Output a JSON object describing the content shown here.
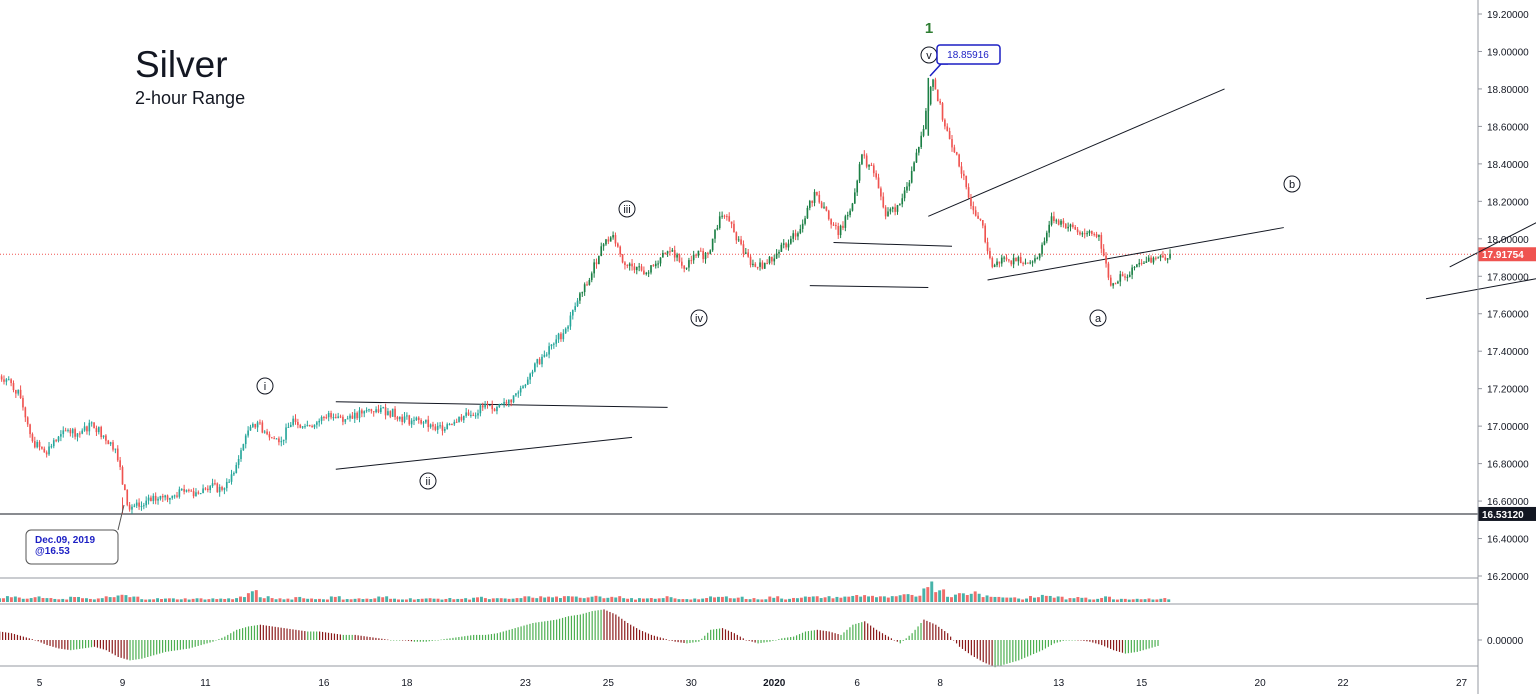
{
  "chart_title": "Silver",
  "chart_subtitle": "2-hour Range",
  "colors": {
    "up": "#26a69a",
    "up_dark": "#1b7f45",
    "down": "#ef5350",
    "text": "#131722",
    "axis_text": "#131722",
    "price_badge": "#ef5350",
    "support_badge": "#131722",
    "callout_border": "#1c1fc4",
    "callout_text": "#1c1fc4",
    "wave_green": "#2e7d32",
    "osc_up": "#4caf50",
    "osc_down": "#8b1a1a"
  },
  "callouts": {
    "top": {
      "text": "18.85916",
      "date_index": 78,
      "price": 18.85916
    },
    "low": {
      "line1": "Dec.09, 2019",
      "line2": "@16.53",
      "date_index": 10,
      "price": 16.53
    }
  },
  "chart_data": {
    "type": "candlestick",
    "title": "Silver",
    "subtitle": "2-hour Range",
    "y_axis": {
      "min": 16.2,
      "max": 19.2,
      "ticks": [
        "19.20000",
        "19.00000",
        "18.80000",
        "18.60000",
        "18.40000",
        "18.20000",
        "18.00000",
        "17.80000",
        "17.60000",
        "17.40000",
        "17.20000",
        "17.00000",
        "16.80000",
        "16.60000",
        "16.40000",
        "16.20000"
      ],
      "tick_values": [
        19.2,
        19.0,
        18.8,
        18.6,
        18.4,
        18.2,
        18.0,
        17.8,
        17.6,
        17.4,
        17.2,
        17.0,
        16.8,
        16.6,
        16.4,
        16.2
      ],
      "side": "right"
    },
    "x_axis": {
      "labels": [
        {
          "text": "5",
          "index": 3
        },
        {
          "text": "9",
          "index": 10
        },
        {
          "text": "11",
          "index": 17
        },
        {
          "text": "16",
          "index": 27
        },
        {
          "text": "18",
          "index": 34
        },
        {
          "text": "23",
          "index": 44
        },
        {
          "text": "25",
          "index": 51
        },
        {
          "text": "30",
          "index": 58
        },
        {
          "text": "2020",
          "index": 65
        },
        {
          "text": "6",
          "index": 72
        },
        {
          "text": "8",
          "index": 79
        },
        {
          "text": "13",
          "index": 89
        },
        {
          "text": "15",
          "index": 96
        },
        {
          "text": "20",
          "index": 106
        },
        {
          "text": "22",
          "index": 113
        },
        {
          "text": "27",
          "index": 123
        }
      ],
      "index_min": 0,
      "index_max": 127,
      "data_last_index": 98
    },
    "price_level": {
      "value": 17.91754,
      "label": "17.91754",
      "style": "dotted"
    },
    "support_level": {
      "value": 16.5312,
      "label": "16.53120",
      "style": "solid"
    },
    "series": [
      {
        "name": "",
        "close": [
          17.25,
          17.15,
          16.92,
          16.86,
          16.92,
          16.98,
          16.96,
          17.02,
          16.95,
          16.88,
          16.58,
          16.57,
          16.6,
          16.62,
          16.63,
          16.66,
          16.64,
          16.68,
          16.66,
          16.75,
          16.95,
          17.02,
          16.94,
          16.92,
          17.04,
          17.0,
          17.02,
          17.07,
          17.05,
          17.04,
          17.08,
          17.09,
          17.08,
          17.05,
          17.03,
          17.02,
          16.98,
          17.01,
          17.05,
          17.06,
          17.1,
          17.08,
          17.12,
          17.18,
          17.28,
          17.37,
          17.44,
          17.52,
          17.67,
          17.78,
          17.96,
          18.02,
          17.86,
          17.85,
          17.82,
          17.9,
          17.94,
          17.84,
          17.91,
          17.92,
          18.12,
          18.08,
          17.92,
          17.85,
          17.87,
          17.93,
          18.0,
          18.08,
          18.25,
          18.15,
          18.02,
          18.15,
          18.45,
          18.35,
          18.12,
          18.18,
          18.3,
          18.55,
          18.85,
          18.6,
          18.45,
          18.22,
          18.1,
          17.85,
          17.9,
          17.88,
          17.87,
          17.92,
          18.12,
          18.08,
          18.05,
          18.03,
          18.02,
          17.75,
          17.8,
          17.85,
          17.88,
          17.9,
          17.92
        ]
      }
    ],
    "volume": {
      "values": [
        3,
        3,
        2,
        3,
        2,
        2,
        3,
        2,
        2,
        3,
        4,
        3,
        2,
        2,
        2,
        2,
        2,
        2,
        2,
        2,
        3,
        6,
        3,
        2,
        2,
        3,
        2,
        2,
        3,
        2,
        2,
        2,
        3,
        2,
        2,
        2,
        2,
        2,
        2,
        2,
        3,
        2,
        2,
        2,
        3,
        3,
        3,
        3,
        3,
        3,
        4,
        3,
        3,
        2,
        2,
        2,
        3,
        2,
        2,
        2,
        3,
        3,
        3,
        2,
        2,
        3,
        2,
        3,
        3,
        3,
        3,
        3,
        4,
        4,
        3,
        3,
        4,
        4,
        11,
        8,
        4,
        5,
        6,
        4,
        3,
        3,
        2,
        3,
        4,
        3,
        2,
        3,
        2,
        3,
        2,
        2,
        2,
        2,
        2
      ]
    },
    "oscillator": {
      "values": [
        0.05,
        0.04,
        0.02,
        0.0,
        -0.03,
        -0.05,
        -0.06,
        -0.05,
        -0.04,
        -0.06,
        -0.1,
        -0.12,
        -0.11,
        -0.09,
        -0.07,
        -0.06,
        -0.05,
        -0.03,
        -0.01,
        0.02,
        0.06,
        0.08,
        0.09,
        0.08,
        0.07,
        0.06,
        0.05,
        0.05,
        0.04,
        0.03,
        0.03,
        0.02,
        0.01,
        0.0,
        0.0,
        -0.01,
        -0.01,
        0.0,
        0.01,
        0.02,
        0.03,
        0.03,
        0.04,
        0.06,
        0.08,
        0.1,
        0.11,
        0.12,
        0.14,
        0.15,
        0.17,
        0.18,
        0.15,
        0.1,
        0.06,
        0.03,
        0.01,
        -0.01,
        -0.02,
        -0.01,
        0.06,
        0.07,
        0.04,
        0.0,
        -0.02,
        -0.01,
        0.01,
        0.02,
        0.05,
        0.06,
        0.05,
        0.03,
        0.09,
        0.11,
        0.06,
        0.02,
        -0.02,
        0.04,
        0.12,
        0.09,
        0.04,
        -0.04,
        -0.09,
        -0.13,
        -0.16,
        -0.14,
        -0.12,
        -0.09,
        -0.06,
        -0.02,
        0.0,
        0.0,
        -0.01,
        -0.03,
        -0.06,
        -0.08,
        -0.07,
        -0.05,
        -0.03
      ]
    },
    "wave_labels": [
      {
        "text": "i",
        "date_index": 29,
        "price": 17.22,
        "style": "circle"
      },
      {
        "text": "ii",
        "date_index": 47,
        "price": 16.74,
        "style": "circle"
      },
      {
        "text": "iii",
        "date_index": 67,
        "price": 18.14,
        "style": "circle"
      },
      {
        "text": "iv",
        "date_index": 75,
        "price": 17.61,
        "style": "circle"
      },
      {
        "text": "v",
        "date_index": 102,
        "price": 18.99,
        "style": "circle"
      },
      {
        "text": "1",
        "date_index": 102,
        "price": 19.11,
        "style": "plain"
      },
      {
        "text": "a",
        "date_index": 121,
        "price": 17.6,
        "style": "circle"
      },
      {
        "text": "b",
        "date_index": 143,
        "price": 18.27,
        "style": "circle"
      }
    ],
    "trendlines": [
      {
        "from": [
          28,
          17.13
        ],
        "to": [
          56,
          17.1
        ]
      },
      {
        "from": [
          28,
          16.77
        ],
        "to": [
          53,
          16.94
        ]
      },
      {
        "from": [
          70,
          17.98
        ],
        "to": [
          80,
          17.96
        ]
      },
      {
        "from": [
          68,
          17.75
        ],
        "to": [
          78,
          17.74
        ]
      },
      {
        "from": [
          78,
          18.12
        ],
        "to": [
          103,
          18.8
        ]
      },
      {
        "from": [
          83,
          17.78
        ],
        "to": [
          108,
          18.06
        ]
      },
      {
        "from": [
          122,
          17.85
        ],
        "to": [
          135,
          18.27
        ]
      },
      {
        "from": [
          120,
          17.68
        ],
        "to": [
          140,
          17.91
        ]
      }
    ]
  }
}
